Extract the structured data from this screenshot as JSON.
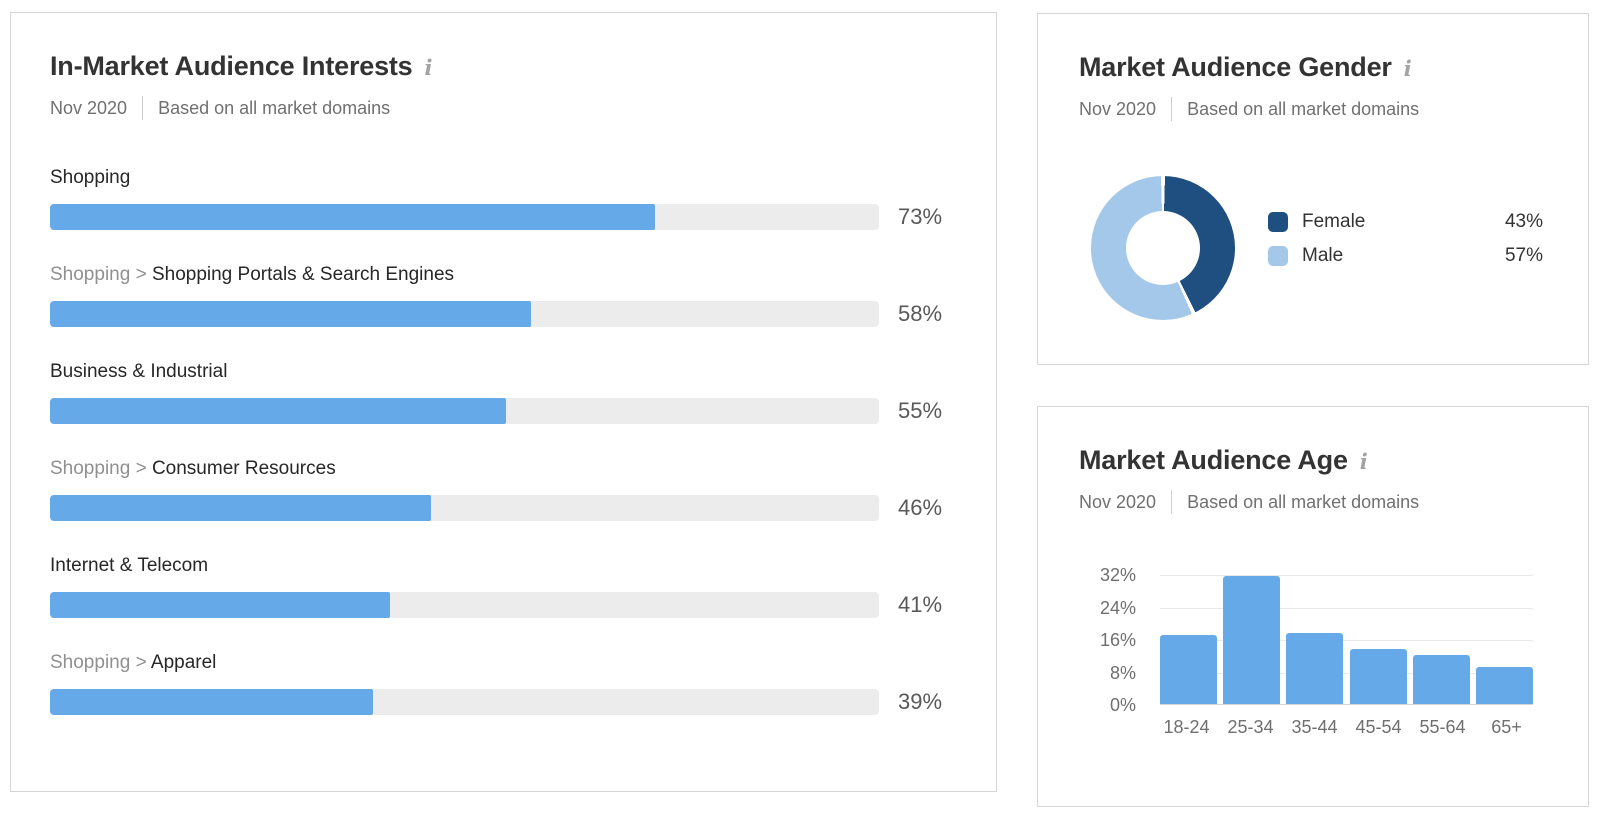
{
  "interests_panel": {
    "title": "In-Market Audience Interests",
    "info_icon": "i",
    "date": "Nov 2020",
    "scope": "Based on all market domains",
    "rows": [
      {
        "prefix": "",
        "label": "Shopping",
        "pct": 73,
        "display": "73%"
      },
      {
        "prefix": "Shopping > ",
        "label": "Shopping Portals & Search Engines",
        "pct": 58,
        "display": "58%"
      },
      {
        "prefix": "",
        "label": "Business & Industrial",
        "pct": 55,
        "display": "55%"
      },
      {
        "prefix": "Shopping > ",
        "label": "Consumer Resources",
        "pct": 46,
        "display": "46%"
      },
      {
        "prefix": "",
        "label": "Internet & Telecom",
        "pct": 41,
        "display": "41%"
      },
      {
        "prefix": "Shopping > ",
        "label": "Apparel",
        "pct": 39,
        "display": "39%"
      }
    ],
    "bar_color": "#66a9e9",
    "track_color": "#ececec"
  },
  "gender_panel": {
    "title": "Market Audience Gender",
    "info_icon": "i",
    "date": "Nov 2020",
    "scope": "Based on all market domains",
    "segments": [
      {
        "label": "Female",
        "pct": 43,
        "display": "43%",
        "color": "#1f4e80"
      },
      {
        "label": "Male",
        "pct": 57,
        "display": "57%",
        "color": "#a4c8ea"
      }
    ]
  },
  "age_panel": {
    "title": "Market Audience Age",
    "info_icon": "i",
    "date": "Nov 2020",
    "scope": "Based on all market domains",
    "y_ticks": [
      "32%",
      "24%",
      "16%",
      "8%",
      "0%"
    ],
    "categories": [
      "18-24",
      "25-34",
      "35-44",
      "45-54",
      "55-64",
      "65+"
    ],
    "values": [
      17,
      31.5,
      17.5,
      13.5,
      12,
      9
    ],
    "bar_color": "#66a9e9"
  },
  "chart_data": [
    {
      "type": "bar",
      "orientation": "horizontal",
      "title": "In-Market Audience Interests",
      "subtitle": "Nov 2020 | Based on all market domains",
      "categories": [
        "Shopping",
        "Shopping > Shopping Portals & Search Engines",
        "Business & Industrial",
        "Shopping > Consumer Resources",
        "Internet & Telecom",
        "Shopping > Apparel"
      ],
      "values": [
        73,
        58,
        55,
        46,
        41,
        39
      ],
      "unit": "%",
      "xlim": [
        0,
        100
      ],
      "grid": false,
      "bar_color": "#66a9e9"
    },
    {
      "type": "pie",
      "subtype": "donut",
      "title": "Market Audience Gender",
      "subtitle": "Nov 2020 | Based on all market domains",
      "labels": [
        "Female",
        "Male"
      ],
      "values": [
        43,
        57
      ],
      "unit": "%",
      "colors": [
        "#1f4e80",
        "#a4c8ea"
      ],
      "start_angle_deg": 0,
      "direction": "clockwise",
      "legend_position": "right"
    },
    {
      "type": "bar",
      "title": "Market Audience Age",
      "subtitle": "Nov 2020 | Based on all market domains",
      "categories": [
        "18-24",
        "25-34",
        "35-44",
        "45-54",
        "55-64",
        "65+"
      ],
      "values": [
        17,
        31.5,
        17.5,
        13.5,
        12,
        9
      ],
      "unit": "%",
      "ylim": [
        0,
        34
      ],
      "y_ticks": [
        0,
        8,
        16,
        24,
        32
      ],
      "grid": true,
      "bar_color": "#66a9e9"
    }
  ]
}
